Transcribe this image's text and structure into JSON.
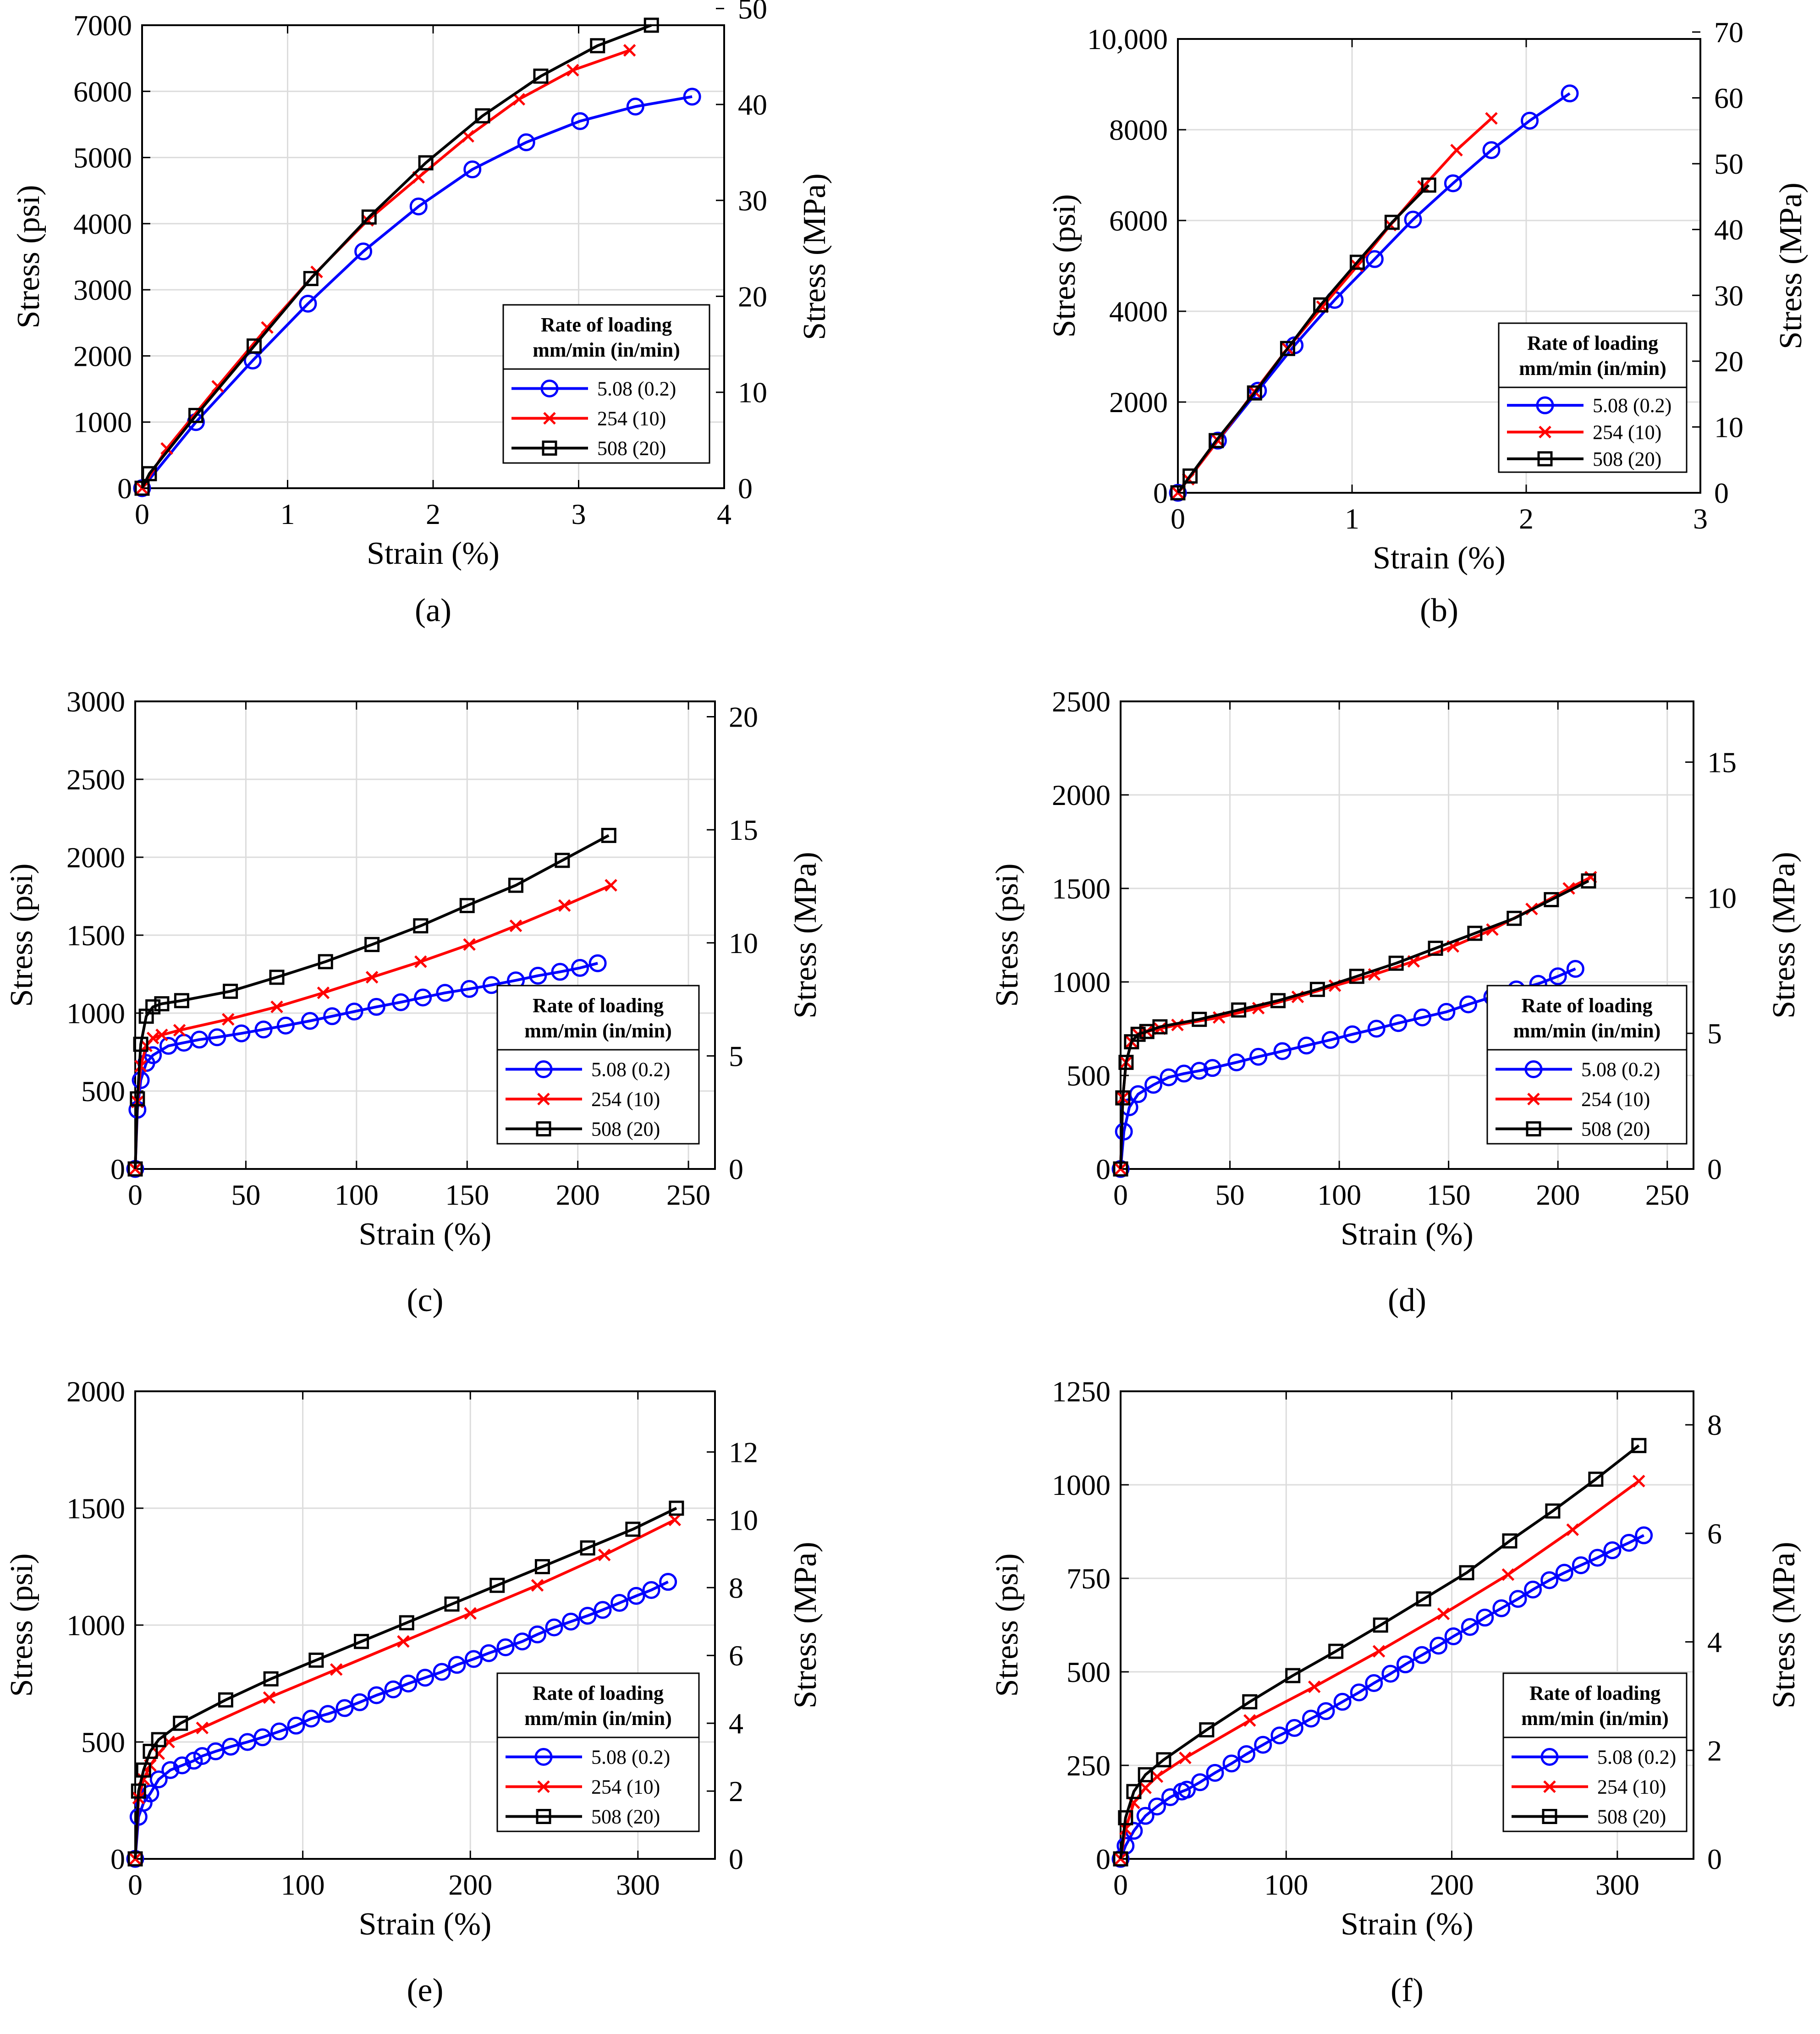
{
  "figure": {
    "legend": {
      "title_line1": "Rate of loading",
      "title_line2": "mm/min (in/min)",
      "entries": [
        "5.08 (0.2)",
        "254  (10)",
        "508  (20)"
      ]
    },
    "series_styles": [
      {
        "color": "#0000ff",
        "marker": "circle"
      },
      {
        "color": "#ff0000",
        "marker": "x"
      },
      {
        "color": "#000000",
        "marker": "square"
      }
    ],
    "grid": true
  },
  "chart_data": [
    {
      "panel_label": "(a)",
      "type": "line",
      "xlabel": "Strain (%)",
      "ylabel": "Stress (psi)",
      "y2label": "Stress (MPa)",
      "xlim": [
        0,
        4
      ],
      "ylim": [
        0,
        7000
      ],
      "y2lim": [
        0,
        48.26
      ],
      "xticks": [
        0,
        1,
        2,
        3,
        4
      ],
      "xtick_labels": [
        "0",
        "1",
        "2",
        "3",
        "4"
      ],
      "yticks": [
        0,
        1000,
        2000,
        3000,
        4000,
        5000,
        6000,
        7000
      ],
      "ytick_labels": [
        "0",
        "1000",
        "2000",
        "3000",
        "4000",
        "5000",
        "6000",
        "7000"
      ],
      "y2ticks": [
        0,
        10,
        20,
        30,
        40,
        50
      ],
      "y2tick_labels": [
        "0",
        "10",
        "20",
        "30",
        "40",
        "50"
      ],
      "legend_position": "lower-right",
      "series": [
        {
          "name": "5.08 (0.2)",
          "x": [
            0,
            0.37,
            0.76,
            1.14,
            1.52,
            1.9,
            2.27,
            2.64,
            3.01,
            3.39,
            3.78
          ],
          "y": [
            0,
            1000,
            1930,
            2790,
            3580,
            4260,
            4820,
            5230,
            5550,
            5770,
            5920
          ]
        },
        {
          "name": "254  (10)",
          "x": [
            0,
            0.17,
            0.52,
            0.86,
            1.2,
            1.55,
            1.9,
            2.24,
            2.59,
            2.96,
            3.35
          ],
          "y": [
            0,
            600,
            1540,
            2430,
            3270,
            4050,
            4700,
            5320,
            5880,
            6320,
            6620
          ]
        },
        {
          "name": "508  (20)",
          "x": [
            0,
            0.05,
            0.37,
            0.77,
            1.16,
            1.56,
            1.95,
            2.34,
            2.74,
            3.13,
            3.5
          ],
          "y": [
            0,
            220,
            1100,
            2150,
            3170,
            4100,
            4920,
            5630,
            6230,
            6690,
            7000
          ]
        }
      ]
    },
    {
      "panel_label": "(b)",
      "type": "line",
      "xlabel": "Strain (%)",
      "ylabel": "Stress (psi)",
      "y2label": "Stress (MPa)",
      "xlim": [
        0,
        3
      ],
      "ylim": [
        0,
        10000
      ],
      "y2lim": [
        0,
        68.95
      ],
      "xticks": [
        0,
        1,
        2,
        3
      ],
      "xtick_labels": [
        "0",
        "1",
        "2",
        "3"
      ],
      "yticks": [
        0,
        2000,
        4000,
        6000,
        8000,
        10000
      ],
      "ytick_labels": [
        "0",
        "2000",
        "4000",
        "6000",
        "8000",
        "10,000"
      ],
      "y2ticks": [
        0,
        10,
        20,
        30,
        40,
        50,
        60,
        70
      ],
      "y2tick_labels": [
        "0",
        "10",
        "20",
        "30",
        "40",
        "50",
        "60",
        "70"
      ],
      "legend_position": "lower-right",
      "series": [
        {
          "name": "5.08 (0.2)",
          "x": [
            0,
            0.23,
            0.46,
            0.67,
            0.9,
            1.13,
            1.35,
            1.58,
            1.8,
            2.02,
            2.25
          ],
          "y": [
            0,
            1150,
            2250,
            3250,
            4250,
            5150,
            6020,
            6820,
            7550,
            8200,
            8800
          ]
        },
        {
          "name": "254  (10)",
          "x": [
            0,
            0.06,
            0.23,
            0.44,
            0.63,
            0.83,
            1.03,
            1.22,
            1.41,
            1.6,
            1.8
          ],
          "y": [
            0,
            300,
            1150,
            2230,
            3180,
            4100,
            5000,
            5900,
            6750,
            7550,
            8250
          ]
        },
        {
          "name": "508  (20)",
          "x": [
            0,
            0.07,
            0.22,
            0.44,
            0.63,
            0.82,
            1.03,
            1.23,
            1.44
          ],
          "y": [
            0,
            370,
            1150,
            2200,
            3180,
            4140,
            5080,
            5960,
            6780
          ]
        }
      ]
    },
    {
      "panel_label": "(c)",
      "type": "line",
      "xlabel": "Strain (%)",
      "ylabel": "Stress (psi)",
      "y2label": "Stress (MPa)",
      "xlim": [
        0,
        262
      ],
      "ylim": [
        0,
        3000
      ],
      "y2lim": [
        0,
        20.68
      ],
      "xticks": [
        0,
        50,
        100,
        150,
        200,
        250
      ],
      "xtick_labels": [
        "0",
        "50",
        "100",
        "150",
        "200",
        "250"
      ],
      "yticks": [
        0,
        500,
        1000,
        1500,
        2000,
        2500,
        3000
      ],
      "ytick_labels": [
        "0",
        "500",
        "1000",
        "1500",
        "2000",
        "2500",
        "3000"
      ],
      "y2ticks": [
        0,
        5,
        10,
        15,
        20
      ],
      "y2tick_labels": [
        "0",
        "5",
        "10",
        "15",
        "20"
      ],
      "legend_position": "lower-right",
      "series": [
        {
          "name": "5.08 (0.2)",
          "x": [
            0,
            1,
            2.5,
            5,
            8,
            15,
            22,
            29,
            37,
            48,
            58,
            68,
            79,
            89,
            99,
            109,
            120,
            130,
            140,
            151,
            161,
            172,
            182,
            192,
            201,
            209
          ],
          "y": [
            0,
            380,
            570,
            680,
            730,
            790,
            810,
            830,
            845,
            870,
            895,
            920,
            950,
            980,
            1010,
            1040,
            1070,
            1100,
            1130,
            1155,
            1180,
            1210,
            1240,
            1265,
            1290,
            1320
          ]
        },
        {
          "name": "254  (10)",
          "x": [
            0,
            1,
            2.5,
            5,
            8,
            12,
            20,
            42,
            64,
            85,
            107,
            129,
            151,
            172,
            194,
            215
          ],
          "y": [
            0,
            430,
            660,
            790,
            840,
            860,
            890,
            960,
            1040,
            1130,
            1230,
            1330,
            1440,
            1560,
            1690,
            1820
          ]
        },
        {
          "name": "508  (20)",
          "x": [
            0,
            1,
            2.5,
            5,
            8,
            12,
            21,
            43,
            64,
            86,
            107,
            129,
            150,
            172,
            193,
            214
          ],
          "y": [
            0,
            450,
            800,
            980,
            1040,
            1060,
            1080,
            1140,
            1230,
            1330,
            1440,
            1560,
            1690,
            1820,
            1980,
            2140
          ]
        }
      ]
    },
    {
      "panel_label": "(d)",
      "type": "line",
      "xlabel": "Strain (%)",
      "ylabel": "Stress (psi)",
      "y2label": "Stress (MPa)",
      "xlim": [
        0,
        262
      ],
      "ylim": [
        0,
        2500
      ],
      "y2lim": [
        0,
        17.24
      ],
      "xticks": [
        0,
        50,
        100,
        150,
        200,
        250
      ],
      "xtick_labels": [
        "0",
        "50",
        "100",
        "150",
        "200",
        "250"
      ],
      "yticks": [
        0,
        500,
        1000,
        1500,
        2000,
        2500
      ],
      "ytick_labels": [
        "0",
        "500",
        "1000",
        "1500",
        "2000",
        "2500"
      ],
      "y2ticks": [
        0,
        5,
        10,
        15
      ],
      "y2tick_labels": [
        "0",
        "5",
        "10",
        "15"
      ],
      "legend_position": "lower-right",
      "series": [
        {
          "name": "5.08 (0.2)",
          "x": [
            0,
            1.5,
            4,
            8,
            15,
            22,
            29,
            36,
            42,
            53,
            63,
            74,
            85,
            96,
            106,
            117,
            127,
            138,
            149,
            159,
            170,
            181,
            191,
            200,
            208
          ],
          "y": [
            0,
            200,
            330,
            400,
            450,
            490,
            510,
            525,
            540,
            570,
            600,
            630,
            660,
            690,
            720,
            750,
            780,
            810,
            840,
            880,
            920,
            960,
            990,
            1030,
            1070
          ]
        },
        {
          "name": "254  (10)",
          "x": [
            0,
            1,
            2.5,
            5,
            8,
            12,
            18,
            26,
            45,
            63,
            81,
            98,
            116,
            134,
            152,
            170,
            188,
            205,
            215
          ],
          "y": [
            0,
            380,
            570,
            680,
            720,
            735,
            750,
            770,
            810,
            860,
            920,
            980,
            1040,
            1110,
            1190,
            1280,
            1390,
            1500,
            1560
          ]
        },
        {
          "name": "508  (20)",
          "x": [
            0,
            1,
            2.5,
            5,
            8,
            12,
            18,
            36,
            54,
            72,
            90,
            108,
            126,
            144,
            162,
            180,
            197,
            214
          ],
          "y": [
            0,
            380,
            570,
            680,
            720,
            735,
            760,
            800,
            850,
            900,
            960,
            1030,
            1100,
            1180,
            1260,
            1340,
            1440,
            1540
          ]
        }
      ]
    },
    {
      "panel_label": "(e)",
      "type": "line",
      "xlabel": "Strain (%)",
      "ylabel": "Stress (psi)",
      "y2label": "Stress (MPa)",
      "xlim": [
        0,
        346
      ],
      "ylim": [
        0,
        2000
      ],
      "y2lim": [
        0,
        13.79
      ],
      "xticks": [
        0,
        100,
        200,
        300
      ],
      "xtick_labels": [
        "0",
        "100",
        "200",
        "300"
      ],
      "yticks": [
        0,
        500,
        1000,
        1500,
        2000
      ],
      "ytick_labels": [
        "0",
        "500",
        "1000",
        "1500",
        "2000"
      ],
      "y2ticks": [
        0,
        2,
        4,
        6,
        8,
        10,
        12
      ],
      "y2tick_labels": [
        "0",
        "2",
        "4",
        "6",
        "8",
        "10",
        "12"
      ],
      "legend_position": "lower-right",
      "series": [
        {
          "name": "5.08 (0.2)",
          "x": [
            0,
            2,
            5,
            9,
            14,
            21,
            28,
            35,
            40,
            48,
            57,
            67,
            76,
            86,
            96,
            105,
            115,
            125,
            134,
            144,
            154,
            163,
            173,
            183,
            192,
            202,
            211,
            221,
            231,
            240,
            250,
            260,
            270,
            279,
            289,
            299,
            308,
            318
          ],
          "y": [
            0,
            180,
            240,
            280,
            340,
            380,
            400,
            420,
            440,
            460,
            480,
            500,
            520,
            545,
            570,
            600,
            620,
            645,
            670,
            700,
            725,
            750,
            775,
            800,
            830,
            855,
            880,
            905,
            930,
            960,
            990,
            1015,
            1040,
            1065,
            1095,
            1125,
            1150,
            1185
          ]
        },
        {
          "name": "254  (10)",
          "x": [
            0,
            2,
            5,
            9,
            14,
            20,
            40,
            80,
            120,
            160,
            200,
            240,
            280,
            322
          ],
          "y": [
            0,
            260,
            340,
            400,
            450,
            500,
            560,
            690,
            810,
            930,
            1050,
            1170,
            1300,
            1450
          ]
        },
        {
          "name": "508  (20)",
          "x": [
            0,
            2,
            5,
            9,
            14,
            27,
            54,
            81,
            108,
            135,
            162,
            189,
            216,
            243,
            270,
            297,
            323
          ],
          "y": [
            0,
            290,
            380,
            460,
            510,
            580,
            680,
            770,
            850,
            930,
            1010,
            1090,
            1170,
            1250,
            1330,
            1410,
            1500
          ]
        }
      ]
    },
    {
      "panel_label": "(f)",
      "type": "line",
      "xlabel": "Strain (%)",
      "ylabel": "Stress (psi)",
      "y2label": "Stress (MPa)",
      "xlim": [
        0,
        346
      ],
      "ylim": [
        0,
        1250
      ],
      "y2lim": [
        0,
        8.618
      ],
      "xticks": [
        0,
        100,
        200,
        300
      ],
      "xtick_labels": [
        "0",
        "100",
        "200",
        "300"
      ],
      "yticks": [
        0,
        250,
        500,
        750,
        1000,
        1250
      ],
      "ytick_labels": [
        "0",
        "250",
        "500",
        "750",
        "1000",
        "1250"
      ],
      "y2ticks": [
        0,
        2,
        4,
        6,
        8
      ],
      "y2tick_labels": [
        "0",
        "2",
        "4",
        "6",
        "8"
      ],
      "legend_position": "lower-right",
      "series": [
        {
          "name": "5.08 (0.2)",
          "x": [
            0,
            3,
            8,
            15,
            22,
            30,
            37,
            40,
            48,
            57,
            67,
            76,
            86,
            96,
            105,
            115,
            124,
            134,
            144,
            153,
            163,
            172,
            182,
            192,
            201,
            211,
            220,
            230,
            240,
            249,
            259,
            268,
            278,
            288,
            297,
            307,
            316
          ],
          "y": [
            0,
            35,
            75,
            115,
            140,
            165,
            180,
            185,
            205,
            230,
            255,
            280,
            305,
            330,
            350,
            375,
            395,
            420,
            445,
            470,
            495,
            520,
            545,
            570,
            595,
            620,
            645,
            670,
            695,
            720,
            745,
            765,
            785,
            805,
            825,
            845,
            865
          ]
        },
        {
          "name": "254  (10)",
          "x": [
            0,
            3,
            8,
            15,
            22,
            39,
            78,
            117,
            156,
            195,
            234,
            273,
            313
          ],
          "y": [
            0,
            80,
            150,
            190,
            220,
            270,
            370,
            460,
            555,
            655,
            760,
            880,
            1010
          ]
        },
        {
          "name": "508  (20)",
          "x": [
            0,
            3,
            8,
            15,
            26,
            52,
            78,
            104,
            130,
            157,
            183,
            209,
            235,
            261,
            287,
            313
          ],
          "y": [
            0,
            110,
            180,
            225,
            265,
            345,
            420,
            490,
            555,
            625,
            695,
            765,
            850,
            930,
            1015,
            1105
          ]
        }
      ]
    }
  ]
}
